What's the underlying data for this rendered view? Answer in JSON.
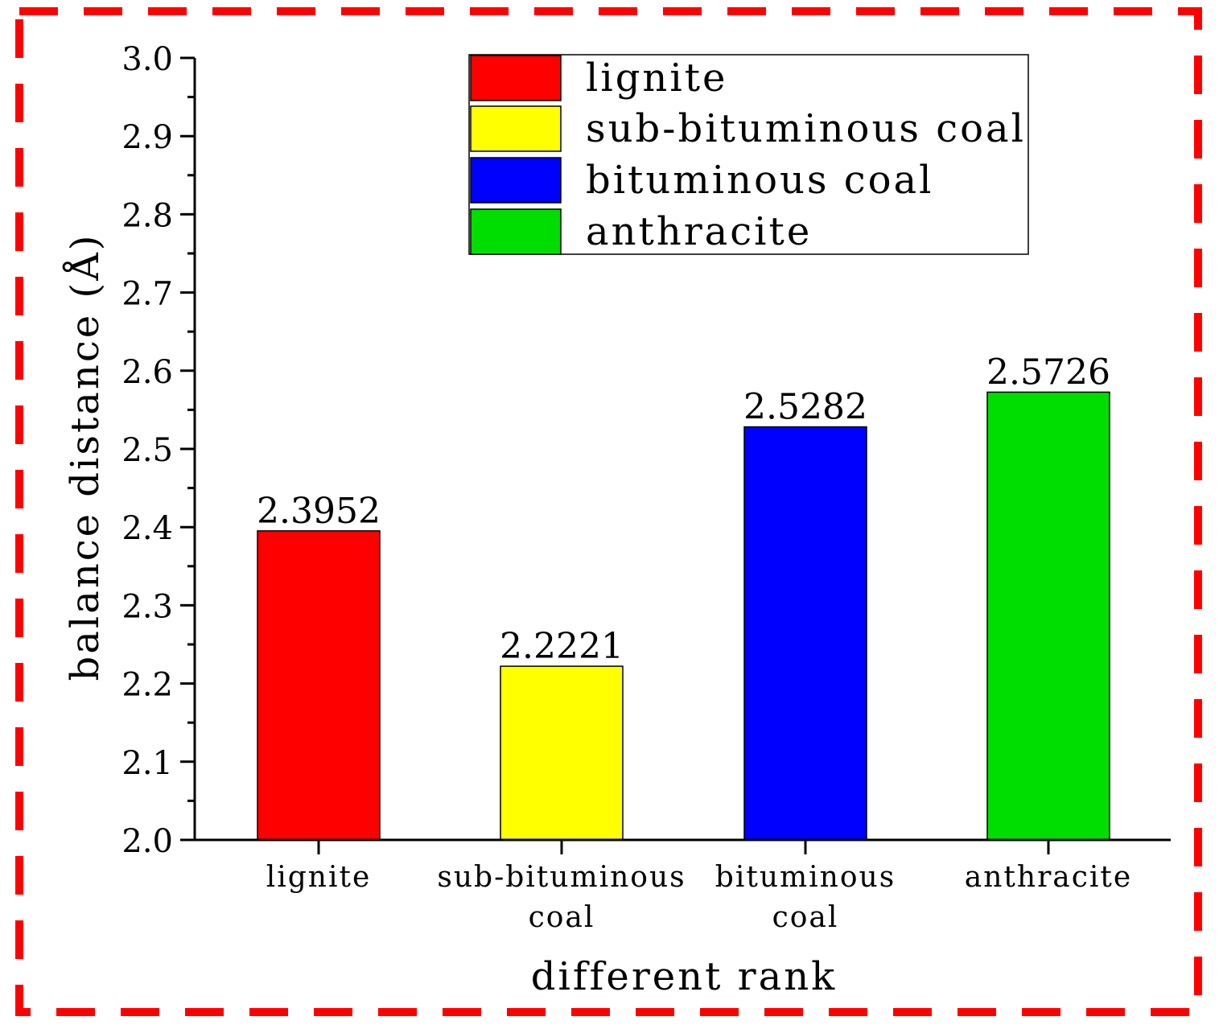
{
  "chart_data": {
    "type": "bar",
    "title": "",
    "xlabel": "different rank",
    "ylabel": "balance distance (Å)",
    "categories": [
      [
        "lignite"
      ],
      [
        "sub-bituminous",
        "coal"
      ],
      [
        "bituminous",
        "coal"
      ],
      [
        "anthracite"
      ]
    ],
    "values": [
      2.3952,
      2.2221,
      2.5282,
      2.5726
    ],
    "value_labels": [
      "2.3952",
      "2.2221",
      "2.5282",
      "2.5726"
    ],
    "colors": [
      "#ff0000",
      "#ffff00",
      "#0000ff",
      "#00dd00"
    ],
    "ylim": [
      2.0,
      3.0
    ],
    "yticks": [
      2.0,
      2.1,
      2.2,
      2.3,
      2.4,
      2.5,
      2.6,
      2.7,
      2.8,
      2.9,
      3.0
    ],
    "ytick_labels": [
      "2.0",
      "2.1",
      "2.2",
      "2.3",
      "2.4",
      "2.5",
      "2.6",
      "2.7",
      "2.8",
      "2.9",
      "3.0"
    ],
    "grid": false,
    "legend": {
      "position": "top-right",
      "entries": [
        {
          "label": "lignite",
          "color": "#ff0000"
        },
        {
          "label": "sub-bituminous coal",
          "color": "#ffff00"
        },
        {
          "label": "bituminous coal",
          "color": "#0000ff"
        },
        {
          "label": "anthracite",
          "color": "#00dd00"
        }
      ]
    },
    "frame_border_color": "#ff0000"
  }
}
